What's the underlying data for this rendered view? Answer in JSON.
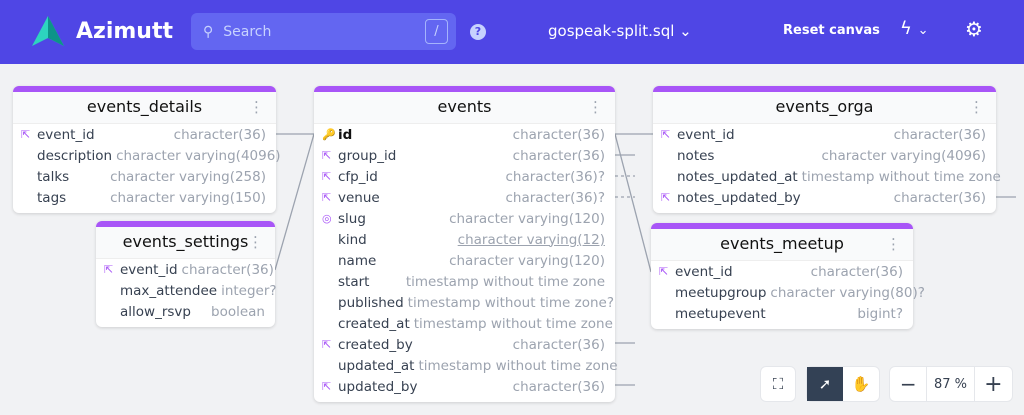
{
  "nav": {
    "app_name": "Azimutt",
    "search_placeholder": "Search",
    "search_shortcut": "/",
    "help": "?",
    "project": "gospeak-split.sql",
    "reset": "Reset canvas",
    "brand_color": "#4f46e5"
  },
  "tables": [
    {
      "id": "events_details",
      "name": "events_details",
      "columns": [
        {
          "name": "event_id",
          "type": "character(36)",
          "icon": "external-link"
        },
        {
          "name": "description",
          "type": "character varying(4096)",
          "icon": ""
        },
        {
          "name": "talks",
          "type": "character varying(258)",
          "icon": ""
        },
        {
          "name": "tags",
          "type": "character varying(150)",
          "icon": ""
        }
      ]
    },
    {
      "id": "events_settings",
      "name": "events_settings",
      "columns": [
        {
          "name": "event_id",
          "type": "character(36)",
          "icon": "external-link"
        },
        {
          "name": "max_attendee",
          "type": "integer?",
          "icon": ""
        },
        {
          "name": "allow_rsvp",
          "type": "boolean",
          "icon": ""
        }
      ]
    },
    {
      "id": "events",
      "name": "events",
      "columns": [
        {
          "name": "id",
          "type": "character(36)",
          "icon": "key"
        },
        {
          "name": "group_id",
          "type": "character(36)",
          "icon": "external-link"
        },
        {
          "name": "cfp_id",
          "type": "character(36)?",
          "icon": "external-link"
        },
        {
          "name": "venue",
          "type": "character(36)?",
          "icon": "external-link"
        },
        {
          "name": "slug",
          "type": "character varying(120)",
          "icon": "fingerprint"
        },
        {
          "name": "kind",
          "type": "character varying(12)",
          "icon": "",
          "underline": true
        },
        {
          "name": "name",
          "type": "character varying(120)",
          "icon": ""
        },
        {
          "name": "start",
          "type": "timestamp without time zone",
          "icon": ""
        },
        {
          "name": "published",
          "type": "timestamp without time zone?",
          "icon": ""
        },
        {
          "name": "created_at",
          "type": "timestamp without time zone",
          "icon": ""
        },
        {
          "name": "created_by",
          "type": "character(36)",
          "icon": "external-link"
        },
        {
          "name": "updated_at",
          "type": "timestamp without time zone",
          "icon": ""
        },
        {
          "name": "updated_by",
          "type": "character(36)",
          "icon": "external-link"
        }
      ]
    },
    {
      "id": "events_orga",
      "name": "events_orga",
      "columns": [
        {
          "name": "event_id",
          "type": "character(36)",
          "icon": "external-link"
        },
        {
          "name": "notes",
          "type": "character varying(4096)",
          "icon": ""
        },
        {
          "name": "notes_updated_at",
          "type": "timestamp without time zone",
          "icon": ""
        },
        {
          "name": "notes_updated_by",
          "type": "character(36)",
          "icon": "external-link"
        }
      ]
    },
    {
      "id": "events_meetup",
      "name": "events_meetup",
      "columns": [
        {
          "name": "event_id",
          "type": "character(36)",
          "icon": "external-link"
        },
        {
          "name": "meetupgroup",
          "type": "character varying(80)?",
          "icon": ""
        },
        {
          "name": "meetupevent",
          "type": "bigint?",
          "icon": ""
        }
      ]
    }
  ],
  "controls": {
    "zoom": "87 %",
    "zoom_out": "−",
    "zoom_in": "+"
  }
}
